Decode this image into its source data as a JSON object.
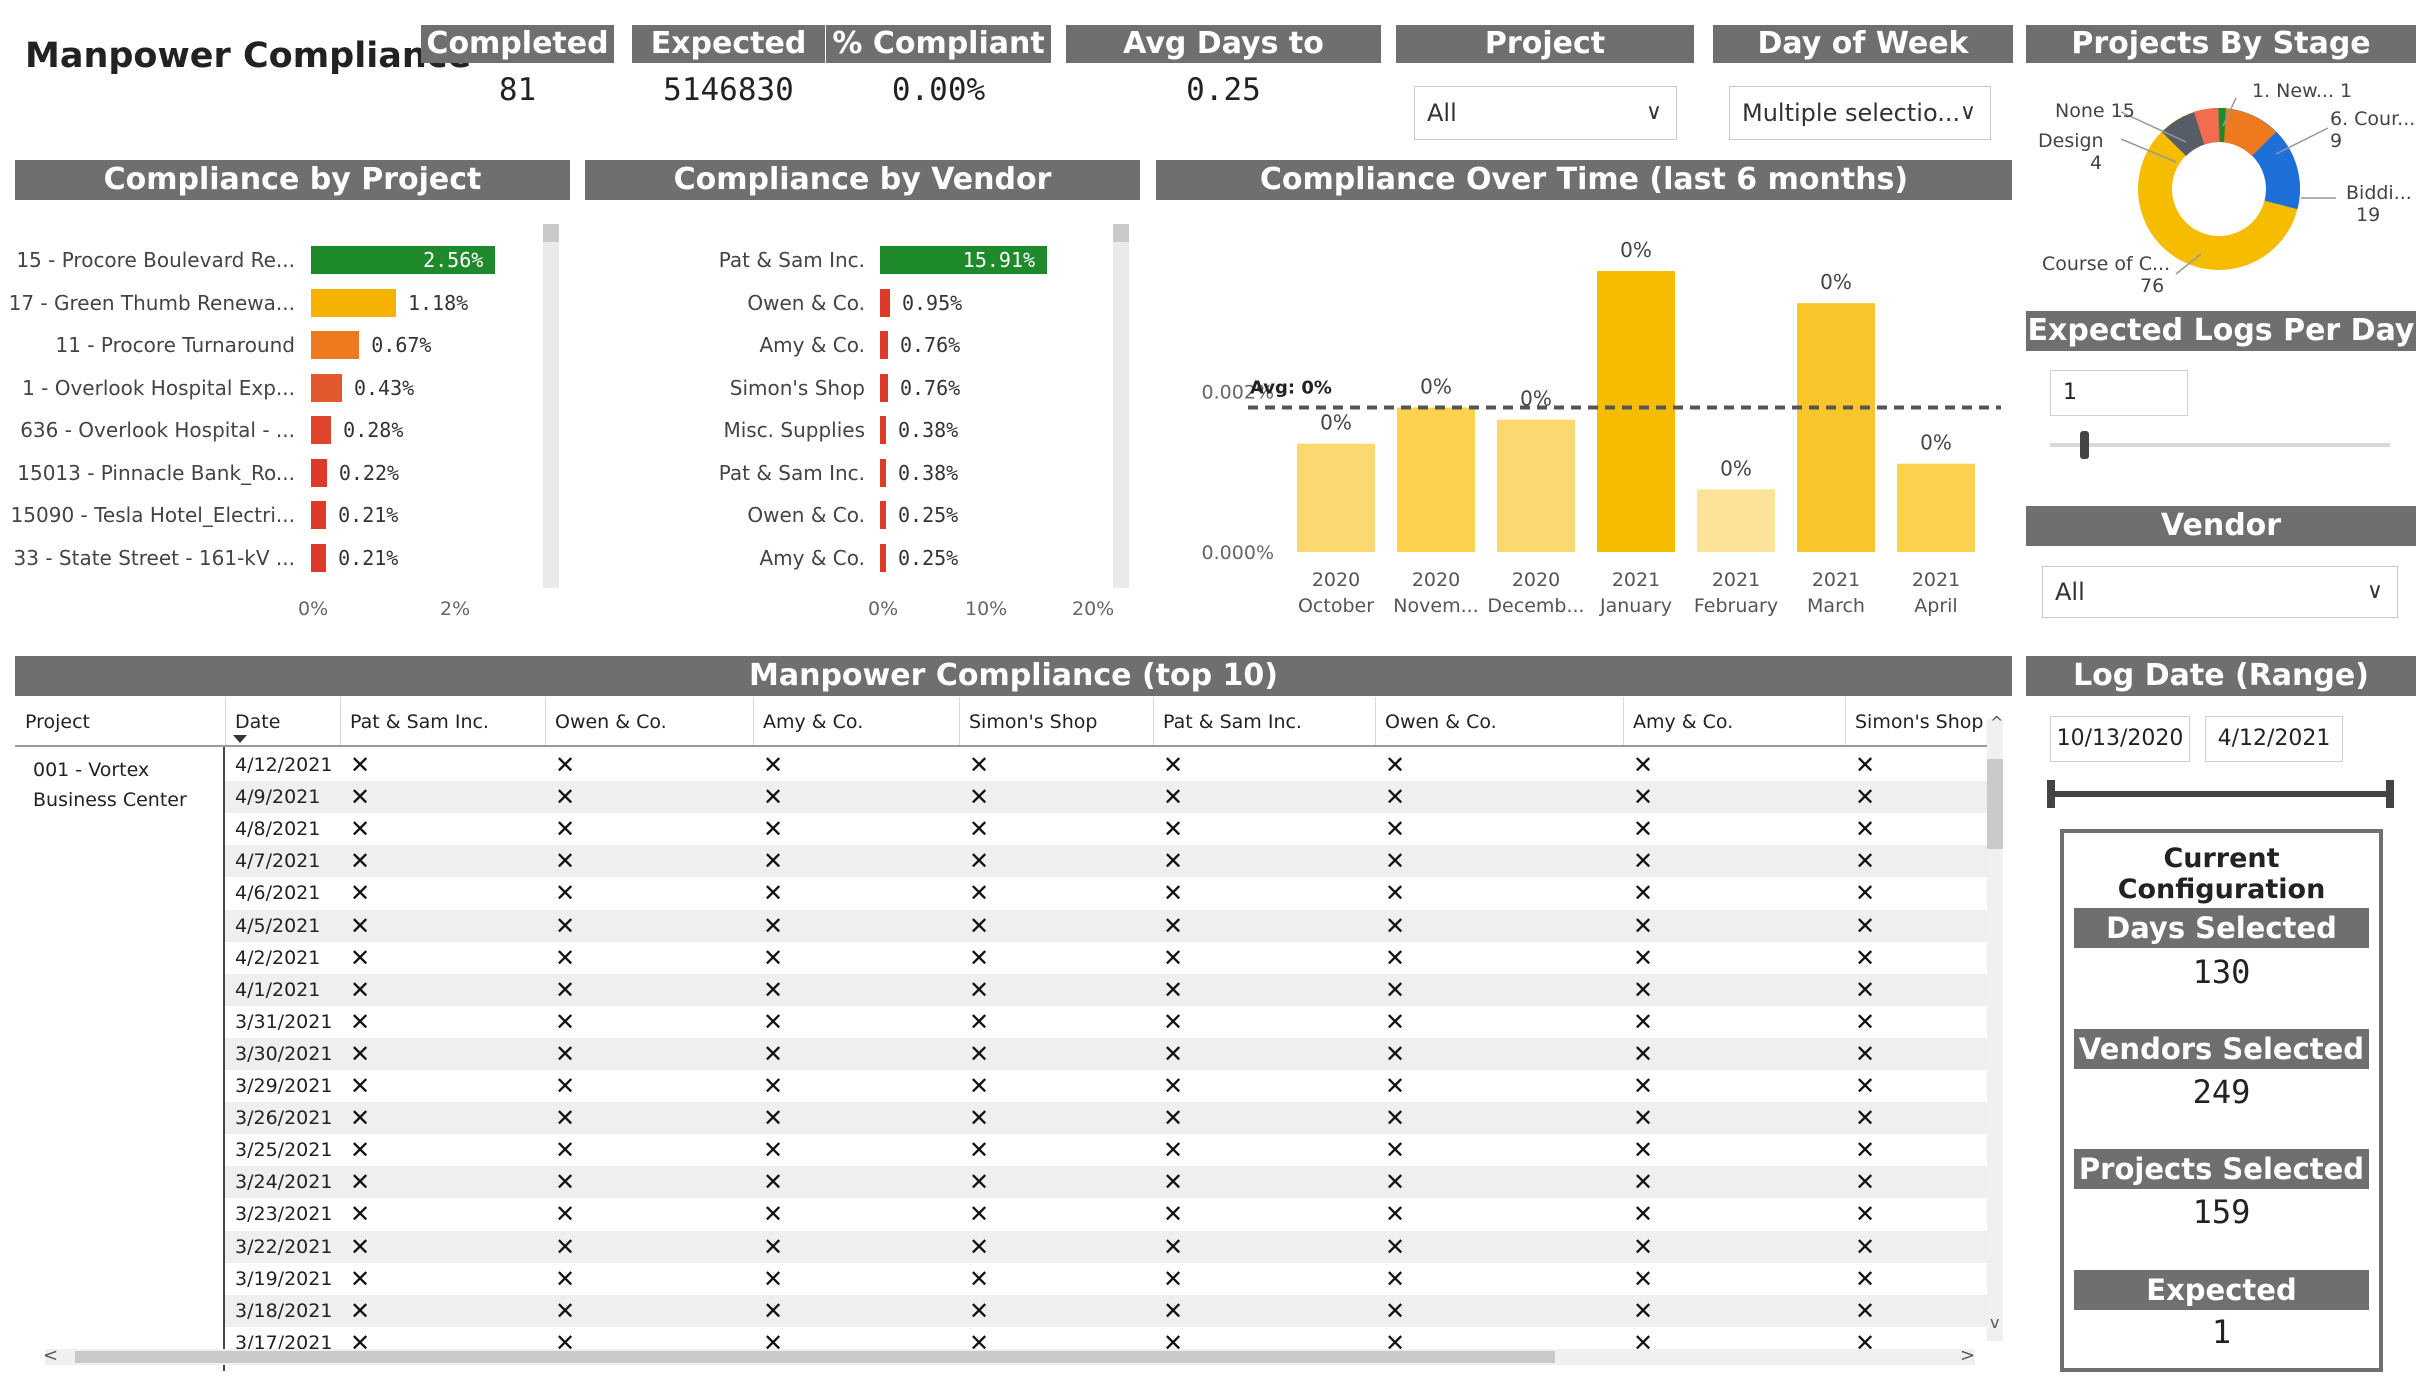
{
  "title": "Manpower Compliance",
  "kpis": [
    {
      "label": "Completed",
      "value": "81"
    },
    {
      "label": "Expected",
      "value": "5146830"
    },
    {
      "label": "% Compliant",
      "value": "0.00%"
    },
    {
      "label": "Avg Days to Create",
      "value": "0.25"
    }
  ],
  "filters": {
    "project": {
      "label": "Project",
      "value": "All"
    },
    "day_of_week": {
      "label": "Day of Week",
      "value": "Multiple selectio..."
    },
    "vendor": {
      "label": "Vendor",
      "value": "All"
    },
    "expected_logs": {
      "label": "Expected Logs Per Day",
      "value": "1"
    },
    "log_date": {
      "label": "Log Date (Range)",
      "start": "10/13/2020",
      "end": "4/12/2021"
    }
  },
  "projects_by_stage": {
    "title": "Projects By Stage",
    "labels": [
      {
        "name": "None",
        "count": "15"
      },
      {
        "name": "Design",
        "count": "4"
      },
      {
        "name": "1. New...",
        "count": "1"
      },
      {
        "name": "6. Cour...",
        "count": "9"
      },
      {
        "name": "Biddi...",
        "count": "19"
      },
      {
        "name": "Course of C...",
        "count": "76"
      }
    ]
  },
  "compliance_by_project": {
    "title": "Compliance by Project",
    "rows": [
      {
        "name": "15 - Procore Boulevard Re...",
        "value": 2.56,
        "label": "2.56%",
        "color": "#1e8a2b"
      },
      {
        "name": "17 - Green Thumb Renewa...",
        "value": 1.18,
        "label": "1.18%",
        "color": "#f5b200"
      },
      {
        "name": "11 - Procore Turnaround",
        "value": 0.67,
        "label": "0.67%",
        "color": "#ee7a1f"
      },
      {
        "name": "1 - Overlook Hospital Exp...",
        "value": 0.43,
        "label": "0.43%",
        "color": "#e2572b"
      },
      {
        "name": "636 - Overlook Hospital - ...",
        "value": 0.28,
        "label": "0.28%",
        "color": "#e0442c"
      },
      {
        "name": "15013 - Pinnacle Bank_Ro...",
        "value": 0.22,
        "label": "0.22%",
        "color": "#de3a2c"
      },
      {
        "name": "15090 - Tesla Hotel_Electri...",
        "value": 0.21,
        "label": "0.21%",
        "color": "#de3a2c"
      },
      {
        "name": "33 - State Street - 161-kV ...",
        "value": 0.21,
        "label": "0.21%",
        "color": "#de3a2c"
      }
    ],
    "ticks": [
      "0%",
      "2%"
    ]
  },
  "compliance_by_vendor": {
    "title": "Compliance by Vendor",
    "rows": [
      {
        "name": "Pat & Sam Inc.",
        "value": 15.91,
        "label": "15.91%",
        "color": "#1e8a2b"
      },
      {
        "name": "Owen & Co.",
        "value": 0.95,
        "label": "0.95%",
        "color": "#de3a2c"
      },
      {
        "name": "Amy & Co.",
        "value": 0.76,
        "label": "0.76%",
        "color": "#de3a2c"
      },
      {
        "name": "Simon's Shop",
        "value": 0.76,
        "label": "0.76%",
        "color": "#de3a2c"
      },
      {
        "name": "Misc. Supplies",
        "value": 0.38,
        "label": "0.38%",
        "color": "#de3a2c"
      },
      {
        "name": "Pat & Sam Inc.",
        "value": 0.38,
        "label": "0.38%",
        "color": "#de3a2c"
      },
      {
        "name": "Owen & Co.",
        "value": 0.25,
        "label": "0.25%",
        "color": "#de3a2c"
      },
      {
        "name": "Amy & Co.",
        "value": 0.25,
        "label": "0.25%",
        "color": "#de3a2c"
      }
    ],
    "ticks": [
      "0%",
      "10%",
      "20%"
    ]
  },
  "chart_data": {
    "type": "bar",
    "title": "Compliance Over Time (last 6 months)",
    "categories": [
      {
        "year": "2020",
        "month": "October"
      },
      {
        "year": "2020",
        "month": "Novem..."
      },
      {
        "year": "2020",
        "month": "Decemb..."
      },
      {
        "year": "2021",
        "month": "January"
      },
      {
        "year": "2021",
        "month": "February"
      },
      {
        "year": "2021",
        "month": "March"
      },
      {
        "year": "2021",
        "month": "April"
      }
    ],
    "values": [
      0.00135,
      0.0018,
      0.00165,
      0.0035,
      0.00078,
      0.0031,
      0.0011
    ],
    "data_labels": [
      "0%",
      "0%",
      "0%",
      "0%",
      "0%",
      "0%",
      "0%"
    ],
    "colors": [
      "#fcd970",
      "#fcd24f",
      "#fcd970",
      "#f6bd00",
      "#fde398",
      "#f8c62a",
      "#fcd24f"
    ],
    "avg_value": 0.0018,
    "avg_label": "Avg: 0%",
    "y_ticks": [
      {
        "v": 0.002,
        "label": "0.002%"
      },
      {
        "v": 0.0,
        "label": "0.000%"
      }
    ],
    "ylim": [
      0,
      0.0037
    ]
  },
  "table": {
    "title": "Manpower Compliance (top 10)",
    "columns": [
      "Project",
      "Date",
      "Pat & Sam Inc.",
      "Owen & Co.",
      "Amy & Co.",
      "Simon's Shop",
      "Pat & Sam Inc.",
      "Owen & Co.",
      "Amy & Co.",
      "Simon's Shop"
    ],
    "project_cell": "001 - Vortex Business Center",
    "dates": [
      "4/12/2021",
      "4/9/2021",
      "4/8/2021",
      "4/7/2021",
      "4/6/2021",
      "4/5/2021",
      "4/2/2021",
      "4/1/2021",
      "3/31/2021",
      "3/30/2021",
      "3/29/2021",
      "3/26/2021",
      "3/25/2021",
      "3/24/2021",
      "3/23/2021",
      "3/22/2021",
      "3/19/2021",
      "3/18/2021",
      "3/17/2021"
    ],
    "mark": "✕"
  },
  "config": {
    "title": "Current Configuration",
    "items": [
      {
        "label": "Days Selected",
        "value": "130"
      },
      {
        "label": "Vendors Selected",
        "value": "249"
      },
      {
        "label": "Projects Selected",
        "value": "159"
      },
      {
        "label": "Expected Selected",
        "value": "1"
      }
    ]
  }
}
